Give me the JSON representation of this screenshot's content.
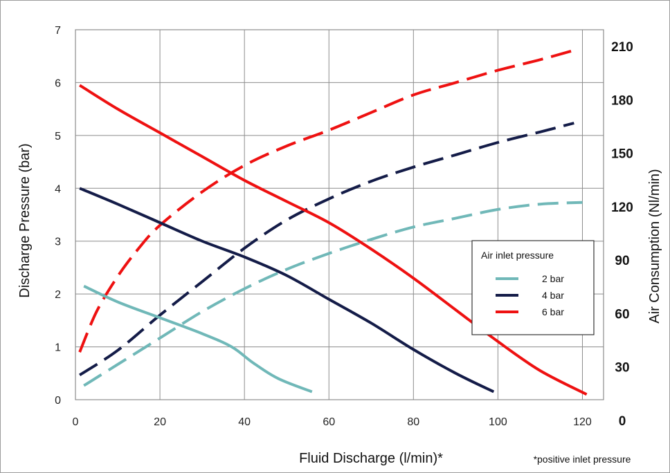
{
  "chart_data": {
    "type": "line",
    "xlabel": "Fluid Discharge (l/min)*",
    "ylabel": "Discharge Pressure (bar)",
    "y2label": "Air Consumption (Nl/min)",
    "note": "*positive inlet pressure",
    "xlim": [
      0,
      125
    ],
    "ylim": [
      0,
      7
    ],
    "y2lim": [
      0,
      210
    ],
    "x_ticks": [
      "0",
      "20",
      "40",
      "60",
      "80",
      "100",
      "120"
    ],
    "y_ticks": [
      "0",
      "1",
      "2",
      "3",
      "4",
      "5",
      "6",
      "7"
    ],
    "y2_ticks": [
      "0",
      "30",
      "60",
      "90",
      "120",
      "150",
      "180",
      "210"
    ],
    "grid": true,
    "legend": {
      "title": "Air inlet pressure",
      "position": "right",
      "entries": [
        {
          "label": "2 bar",
          "color": "#70B8B8"
        },
        {
          "label": "4 bar",
          "color": "#141C48"
        },
        {
          "label": "6 bar",
          "color": "#EE1111"
        }
      ]
    },
    "series": [
      {
        "name": "2 bar",
        "color": "#70B8B8",
        "style": "solid",
        "axis": "left",
        "x": [
          2,
          10,
          20,
          30,
          37,
          42,
          48,
          56
        ],
        "y": [
          2.15,
          1.85,
          1.55,
          1.25,
          1.0,
          0.7,
          0.4,
          0.15
        ]
      },
      {
        "name": "4 bar",
        "color": "#141C48",
        "style": "solid",
        "axis": "left",
        "x": [
          1,
          10,
          20,
          30,
          40,
          50,
          60,
          70,
          80,
          90,
          99
        ],
        "y": [
          4.0,
          3.7,
          3.35,
          3.0,
          2.7,
          2.35,
          1.9,
          1.45,
          0.95,
          0.5,
          0.15
        ]
      },
      {
        "name": "6 bar",
        "color": "#EE1111",
        "style": "solid",
        "axis": "left",
        "x": [
          1,
          10,
          20,
          30,
          40,
          50,
          60,
          70,
          80,
          90,
          100,
          110,
          121
        ],
        "y": [
          5.95,
          5.5,
          5.05,
          4.6,
          4.15,
          3.75,
          3.35,
          2.85,
          2.3,
          1.7,
          1.1,
          0.55,
          0.1
        ]
      },
      {
        "name": "2 bar",
        "color": "#70B8B8",
        "style": "dashed",
        "axis": "right",
        "x": [
          2,
          10,
          20,
          30,
          40,
          50,
          60,
          70,
          80,
          90,
          100,
          110,
          120
        ],
        "y": [
          8,
          20,
          35,
          50,
          63,
          74,
          83,
          91,
          98,
          103,
          108,
          111,
          112
        ]
      },
      {
        "name": "4 bar",
        "color": "#141C48",
        "style": "dashed",
        "axis": "right",
        "x": [
          1,
          10,
          20,
          30,
          40,
          50,
          60,
          70,
          80,
          90,
          100,
          110,
          118
        ],
        "y": [
          14,
          28,
          48,
          67,
          86,
          102,
          114,
          124,
          132,
          139,
          146,
          152,
          157
        ]
      },
      {
        "name": "6 bar",
        "color": "#EE1111",
        "style": "dashed",
        "axis": "right",
        "x": [
          1,
          5,
          10,
          15,
          20,
          30,
          40,
          50,
          60,
          70,
          80,
          90,
          100,
          110,
          119
        ],
        "y": [
          27,
          50,
          70,
          86,
          99,
          118,
          133,
          144,
          153,
          163,
          173,
          180,
          187,
          193,
          199
        ]
      }
    ]
  }
}
